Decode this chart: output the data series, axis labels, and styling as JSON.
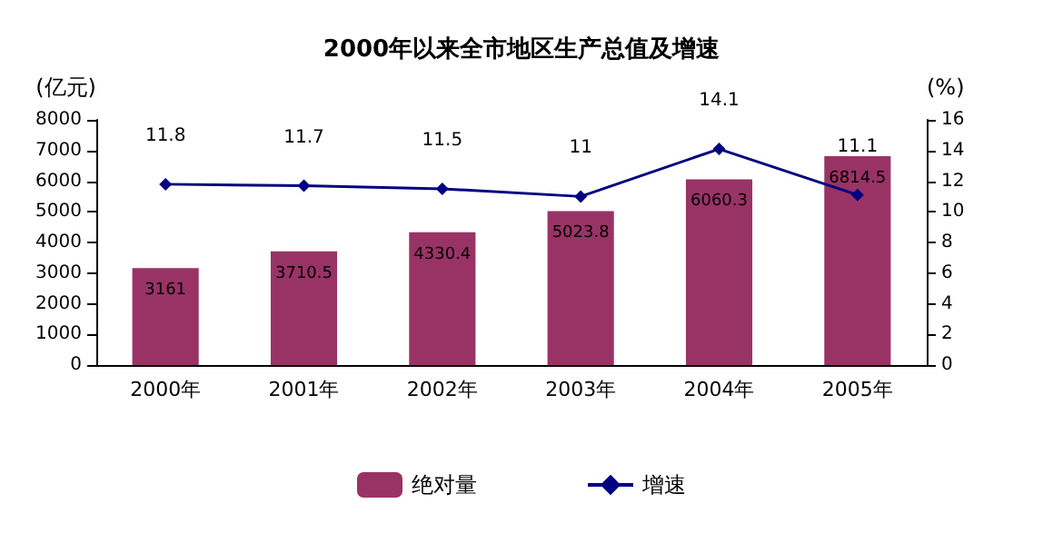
{
  "chart_data": {
    "type": "bar",
    "title": "2000年以来全市地区生产总值及增速",
    "ylabel": "(亿元)",
    "y2label": "(%)",
    "categories": [
      "2000年",
      "2001年",
      "2002年",
      "2003年",
      "2004年",
      "2005年"
    ],
    "series": [
      {
        "name": "绝对量",
        "color": "#993366",
        "values": [
          3161,
          3710.5,
          4330.4,
          5023.8,
          6060.3,
          6814.5
        ]
      },
      {
        "name": "增速",
        "type": "line",
        "axis": "y2",
        "color": "#000080",
        "marker": "diamond",
        "values": [
          11.8,
          11.7,
          11.5,
          11,
          14.1,
          11.1
        ]
      }
    ],
    "ylim": [
      0,
      8000
    ],
    "yticks": [
      0,
      1000,
      2000,
      3000,
      4000,
      5000,
      6000,
      7000,
      8000
    ],
    "y2lim": [
      0,
      16
    ],
    "y2ticks": [
      0,
      2,
      4,
      6,
      8,
      10,
      12,
      14,
      16
    ],
    "data_labels": true,
    "grid": false,
    "legend": "bottom"
  }
}
